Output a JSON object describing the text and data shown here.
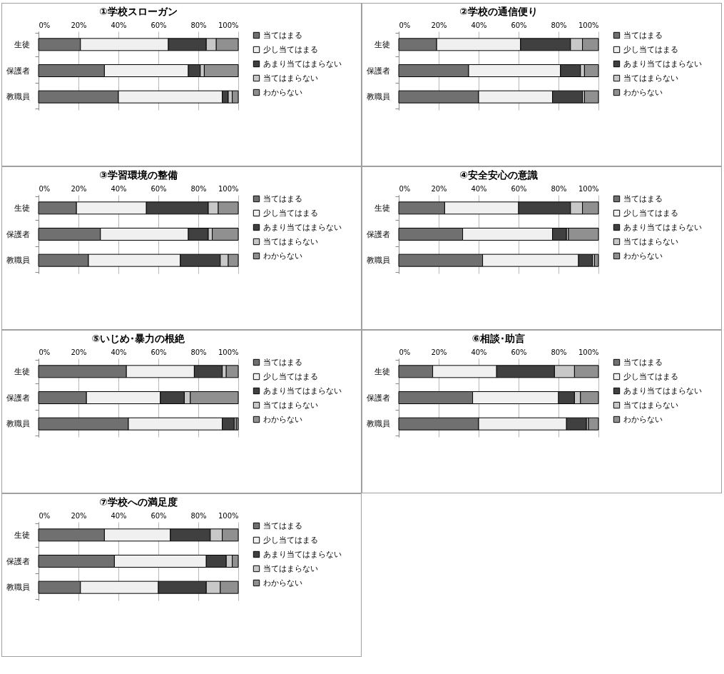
{
  "chart_data": [
    {
      "type": "bar",
      "orientation": "horizontal",
      "stacked": true,
      "title": "①学校スローガン",
      "categories": [
        "生徒",
        "保護者",
        "教職員"
      ],
      "xlim": [
        0,
        100
      ],
      "xticks": [
        {
          "value": 0,
          "label": "0%"
        },
        {
          "value": 20,
          "label": "20%"
        },
        {
          "value": 40,
          "label": "40%"
        },
        {
          "value": 60,
          "label": "60%"
        },
        {
          "value": 80,
          "label": "80%"
        },
        {
          "value": 100,
          "label": "100%"
        }
      ],
      "grid": "x",
      "legend": "right",
      "series": [
        {
          "name": "当てはまる",
          "color": "#707070",
          "values": [
            21,
            33,
            40
          ]
        },
        {
          "name": "少し当てはまる",
          "color": "#f0f0f0",
          "values": [
            44,
            42,
            52
          ]
        },
        {
          "name": "あまり当てはまらない",
          "color": "#404040",
          "values": [
            19,
            6,
            3
          ]
        },
        {
          "name": "当てはまらない",
          "color": "#c8c8c8",
          "values": [
            5,
            2,
            2
          ]
        },
        {
          "name": "わからない",
          "color": "#909090",
          "values": [
            11,
            17,
            3
          ]
        }
      ]
    },
    {
      "type": "bar",
      "orientation": "horizontal",
      "stacked": true,
      "title": "②学校の通信便り",
      "categories": [
        "生徒",
        "保護者",
        "教職員"
      ],
      "xlim": [
        0,
        100
      ],
      "xticks": [
        {
          "value": 0,
          "label": "0%"
        },
        {
          "value": 20,
          "label": "20%"
        },
        {
          "value": 40,
          "label": "40%"
        },
        {
          "value": 60,
          "label": "60%"
        },
        {
          "value": 80,
          "label": "80%"
        },
        {
          "value": 100,
          "label": "100%"
        }
      ],
      "grid": "x",
      "legend": "right",
      "series": [
        {
          "name": "当てはまる",
          "color": "#707070",
          "values": [
            19,
            35,
            40
          ]
        },
        {
          "name": "少し当てはまる",
          "color": "#f0f0f0",
          "values": [
            42,
            46,
            37
          ]
        },
        {
          "name": "あまり当てはまらない",
          "color": "#404040",
          "values": [
            25,
            10,
            15
          ]
        },
        {
          "name": "当てはまらない",
          "color": "#c8c8c8",
          "values": [
            6,
            2,
            1
          ]
        },
        {
          "name": "わからない",
          "color": "#909090",
          "values": [
            8,
            7,
            7
          ]
        }
      ]
    },
    {
      "type": "bar",
      "orientation": "horizontal",
      "stacked": true,
      "title": "③学習環境の整備",
      "categories": [
        "生徒",
        "保護者",
        "教職員"
      ],
      "xlim": [
        0,
        100
      ],
      "xticks": [
        {
          "value": 0,
          "label": "0%"
        },
        {
          "value": 20,
          "label": "20%"
        },
        {
          "value": 40,
          "label": "40%"
        },
        {
          "value": 60,
          "label": "60%"
        },
        {
          "value": 80,
          "label": "80%"
        },
        {
          "value": 100,
          "label": "100%"
        }
      ],
      "grid": "x",
      "legend": "right",
      "series": [
        {
          "name": "当てはまる",
          "color": "#707070",
          "values": [
            19,
            31,
            25
          ]
        },
        {
          "name": "少し当てはまる",
          "color": "#f0f0f0",
          "values": [
            35,
            44,
            46
          ]
        },
        {
          "name": "あまり当てはまらない",
          "color": "#404040",
          "values": [
            31,
            10,
            20
          ]
        },
        {
          "name": "当てはまらない",
          "color": "#c8c8c8",
          "values": [
            5,
            2,
            4
          ]
        },
        {
          "name": "わからない",
          "color": "#909090",
          "values": [
            10,
            13,
            5
          ]
        }
      ]
    },
    {
      "type": "bar",
      "orientation": "horizontal",
      "stacked": true,
      "title": "④安全安心の意識",
      "categories": [
        "生徒",
        "保護者",
        "教職員"
      ],
      "xlim": [
        0,
        100
      ],
      "xticks": [
        {
          "value": 0,
          "label": "0%"
        },
        {
          "value": 20,
          "label": "20%"
        },
        {
          "value": 40,
          "label": "40%"
        },
        {
          "value": 60,
          "label": "60%"
        },
        {
          "value": 80,
          "label": "80%"
        },
        {
          "value": 100,
          "label": "100%"
        }
      ],
      "grid": "x",
      "legend": "right",
      "series": [
        {
          "name": "当てはまる",
          "color": "#707070",
          "values": [
            23,
            32,
            42
          ]
        },
        {
          "name": "少し当てはまる",
          "color": "#f0f0f0",
          "values": [
            37,
            45,
            48
          ]
        },
        {
          "name": "あまり当てはまらない",
          "color": "#404040",
          "values": [
            26,
            7,
            7
          ]
        },
        {
          "name": "当てはまらない",
          "color": "#c8c8c8",
          "values": [
            6,
            1,
            1
          ]
        },
        {
          "name": "わからない",
          "color": "#909090",
          "values": [
            8,
            15,
            2
          ]
        }
      ]
    },
    {
      "type": "bar",
      "orientation": "horizontal",
      "stacked": true,
      "title": "⑤いじめ･暴力の根絶",
      "categories": [
        "生徒",
        "保護者",
        "教職員"
      ],
      "xlim": [
        0,
        100
      ],
      "xticks": [
        {
          "value": 0,
          "label": "0%"
        },
        {
          "value": 20,
          "label": "20%"
        },
        {
          "value": 40,
          "label": "40%"
        },
        {
          "value": 60,
          "label": "60%"
        },
        {
          "value": 80,
          "label": "80%"
        },
        {
          "value": 100,
          "label": "100%"
        }
      ],
      "grid": "x",
      "legend": "right",
      "series": [
        {
          "name": "当てはまる",
          "color": "#707070",
          "values": [
            44,
            24,
            45
          ]
        },
        {
          "name": "少し当てはまる",
          "color": "#f0f0f0",
          "values": [
            34,
            37,
            47
          ]
        },
        {
          "name": "あまり当てはまらない",
          "color": "#404040",
          "values": [
            14,
            12,
            6
          ]
        },
        {
          "name": "当てはまらない",
          "color": "#c8c8c8",
          "values": [
            2,
            3,
            1
          ]
        },
        {
          "name": "わからない",
          "color": "#909090",
          "values": [
            6,
            24,
            1
          ]
        }
      ]
    },
    {
      "type": "bar",
      "orientation": "horizontal",
      "stacked": true,
      "title": "⑥相談･助言",
      "categories": [
        "生徒",
        "保護者",
        "教職員"
      ],
      "xlim": [
        0,
        100
      ],
      "xticks": [
        {
          "value": 0,
          "label": "0%"
        },
        {
          "value": 20,
          "label": "20%"
        },
        {
          "value": 40,
          "label": "40%"
        },
        {
          "value": 60,
          "label": "60%"
        },
        {
          "value": 80,
          "label": "80%"
        },
        {
          "value": 100,
          "label": "100%"
        }
      ],
      "grid": "x",
      "legend": "right",
      "series": [
        {
          "name": "当てはまる",
          "color": "#707070",
          "values": [
            17,
            37,
            40
          ]
        },
        {
          "name": "少し当てはまる",
          "color": "#f0f0f0",
          "values": [
            32,
            43,
            44
          ]
        },
        {
          "name": "あまり当てはまらない",
          "color": "#404040",
          "values": [
            29,
            8,
            10
          ]
        },
        {
          "name": "当てはまらない",
          "color": "#c8c8c8",
          "values": [
            10,
            3,
            1
          ]
        },
        {
          "name": "わからない",
          "color": "#909090",
          "values": [
            12,
            9,
            5
          ]
        }
      ]
    },
    {
      "type": "bar",
      "orientation": "horizontal",
      "stacked": true,
      "title": "⑦学校への満足度",
      "categories": [
        "生徒",
        "保護者",
        "教職員"
      ],
      "xlim": [
        0,
        100
      ],
      "xticks": [
        {
          "value": 0,
          "label": "0%"
        },
        {
          "value": 20,
          "label": "20%"
        },
        {
          "value": 40,
          "label": "40%"
        },
        {
          "value": 60,
          "label": "60%"
        },
        {
          "value": 80,
          "label": "80%"
        },
        {
          "value": 100,
          "label": "100%"
        }
      ],
      "grid": "x",
      "legend": "right",
      "series": [
        {
          "name": "当てはまる",
          "color": "#707070",
          "values": [
            33,
            38,
            21
          ]
        },
        {
          "name": "少し当てはまる",
          "color": "#f0f0f0",
          "values": [
            33,
            46,
            39
          ]
        },
        {
          "name": "あまり当てはまらない",
          "color": "#404040",
          "values": [
            20,
            10,
            24
          ]
        },
        {
          "name": "当てはまらない",
          "color": "#c8c8c8",
          "values": [
            6,
            3,
            7
          ]
        },
        {
          "name": "わからない",
          "color": "#909090",
          "values": [
            8,
            3,
            9
          ]
        }
      ]
    }
  ]
}
